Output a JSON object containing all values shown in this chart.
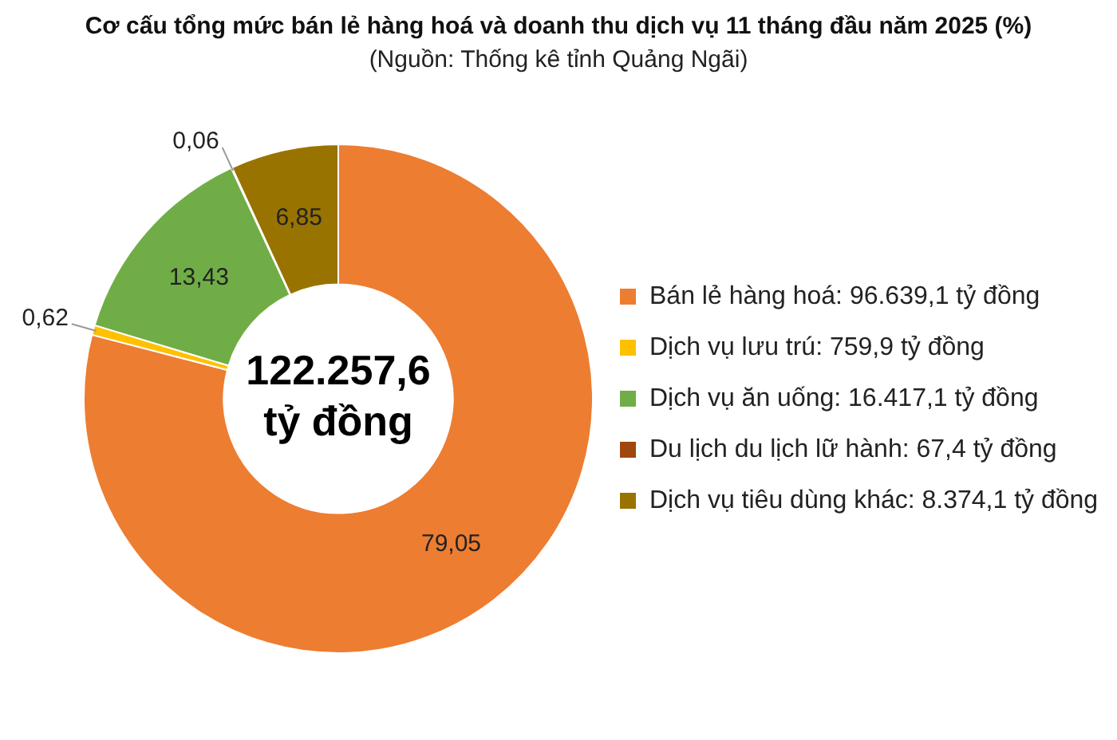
{
  "chart_data": {
    "type": "donut",
    "title": "Cơ cấu tổng mức bán lẻ hàng hoá và doanh thu dịch vụ 11 tháng đầu năm 2025 (%)",
    "subtitle": "(Nguồn: Thống kê tỉnh Quảng Ngãi)",
    "categories": [
      "Bán lẻ hàng hoá: 96.639,1 tỷ đồng",
      "Dịch vụ lưu trú: 759,9 tỷ đồng",
      "Dịch vụ ăn uống: 16.417,1 tỷ đồng",
      "Du lịch du lịch lữ hành: 67,4 tỷ đồng",
      "Dịch vụ tiêu dùng khác: 8.374,1 tỷ đồng"
    ],
    "values": [
      79.05,
      0.62,
      13.43,
      0.06,
      6.85
    ],
    "colors": [
      "#ed7d31",
      "#ffc000",
      "#70ad47",
      "#9e480e",
      "#997300"
    ],
    "value_labels": [
      "79,05",
      "0,62",
      "13,43",
      "0,06",
      "6,85"
    ],
    "annotations": [
      "122.257,6 tỷ đồng"
    ],
    "legend": "right"
  }
}
